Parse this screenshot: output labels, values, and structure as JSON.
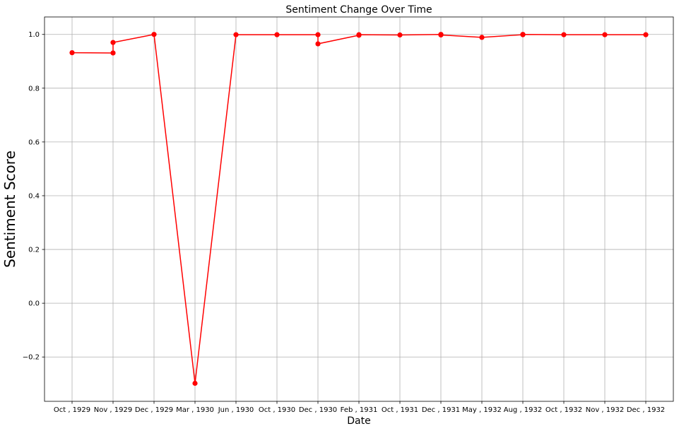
{
  "chart_data": {
    "type": "line",
    "title": "Sentiment Change Over Time",
    "xlabel": "Date",
    "ylabel": "Sentiment Score",
    "categories": [
      "Oct , 1929",
      "Nov , 1929",
      "Dec , 1929",
      "Mar , 1930",
      "Jun , 1930",
      "Oct , 1930",
      "Dec , 1930",
      "Feb , 1931",
      "Oct , 1931",
      "Dec , 1931",
      "May , 1932",
      "Aug , 1932",
      "Oct , 1932",
      "Nov , 1932",
      "Dec , 1932"
    ],
    "points": [
      {
        "x": "Oct , 1929",
        "y": 0.932
      },
      {
        "x": "Nov , 1929",
        "y": 0.931
      },
      {
        "x": "Nov , 1929",
        "y": 0.97
      },
      {
        "x": "Dec , 1929",
        "y": 1.0
      },
      {
        "x": "Mar , 1930",
        "y": -0.298
      },
      {
        "x": "Jun , 1930",
        "y": 0.999
      },
      {
        "x": "Oct , 1930",
        "y": 0.999
      },
      {
        "x": "Dec , 1930",
        "y": 0.999
      },
      {
        "x": "Dec , 1930",
        "y": 0.965
      },
      {
        "x": "Feb , 1931",
        "y": 0.997
      },
      {
        "x": "Feb , 1931",
        "y": 0.999
      },
      {
        "x": "Oct , 1931",
        "y": 0.998
      },
      {
        "x": "Dec , 1931",
        "y": 1.0
      },
      {
        "x": "Dec , 1931",
        "y": 0.998
      },
      {
        "x": "May , 1932",
        "y": 0.989
      },
      {
        "x": "Aug , 1932",
        "y": 0.999
      },
      {
        "x": "Aug , 1932",
        "y": 1.0
      },
      {
        "x": "Oct , 1932",
        "y": 0.999
      },
      {
        "x": "Nov , 1932",
        "y": 0.999
      },
      {
        "x": "Dec , 1932",
        "y": 0.999
      }
    ],
    "yticks": [
      -0.2,
      0.0,
      0.2,
      0.4,
      0.6,
      0.8,
      1.0
    ],
    "ytick_labels": [
      "−0.2",
      "0.0",
      "0.2",
      "0.4",
      "0.6",
      "0.8",
      "1.0"
    ],
    "ylim": [
      -0.365,
      1.065
    ],
    "grid": true,
    "color": "#ff0000"
  }
}
